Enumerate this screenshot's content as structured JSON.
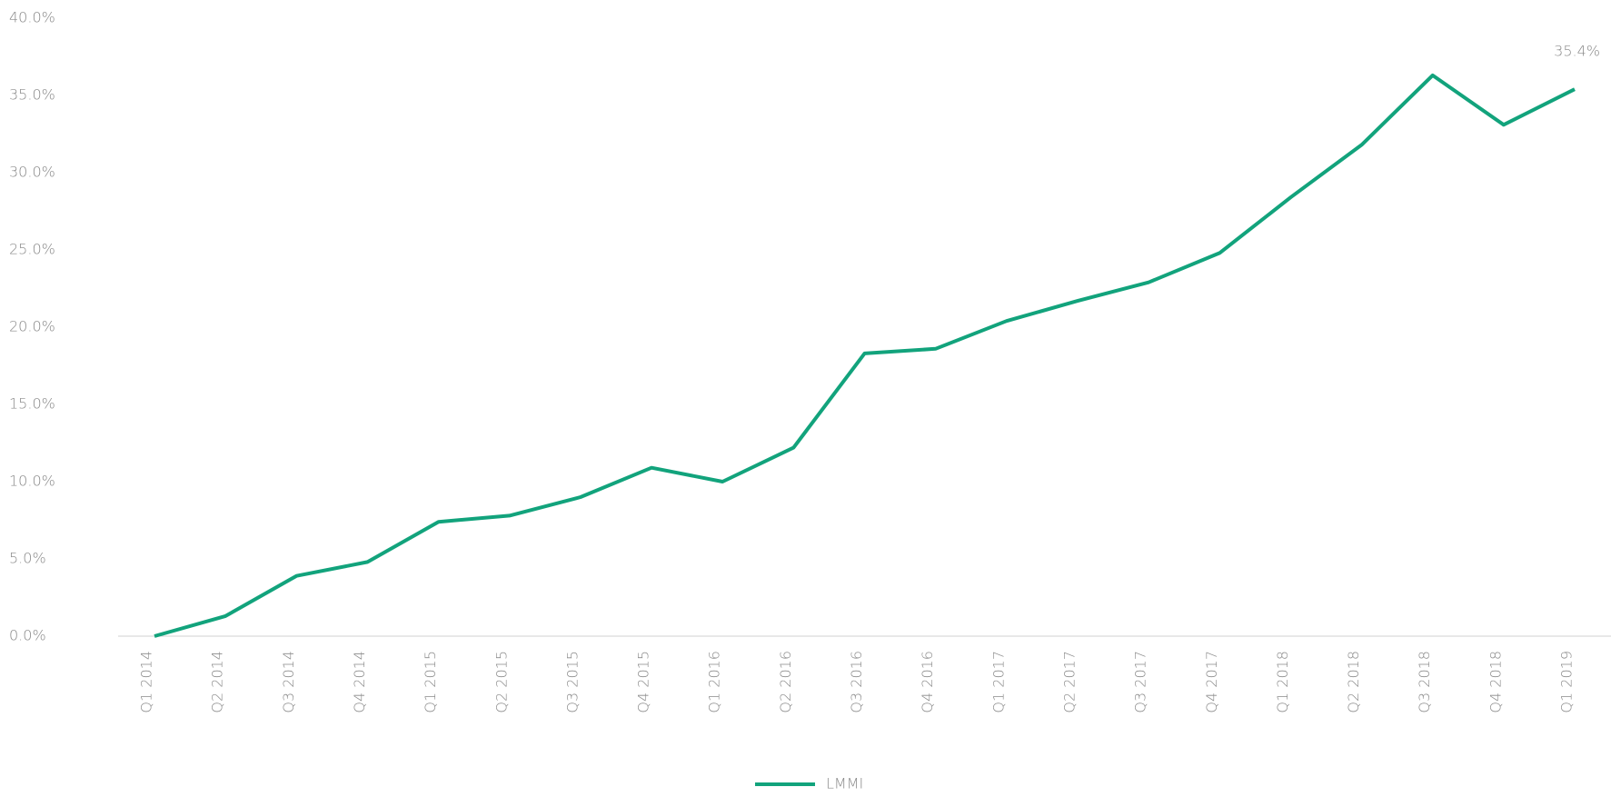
{
  "chart_data": {
    "type": "line",
    "categories": [
      "Q1 2014",
      "Q2 2014",
      "Q3 2014",
      "Q4 2014",
      "Q1 2015",
      "Q2 2015",
      "Q3 2015",
      "Q4 2015",
      "Q1 2016",
      "Q2 2016",
      "Q3 2016",
      "Q4 2016",
      "Q1 2017",
      "Q2 2017",
      "Q3 2017",
      "Q4 2017",
      "Q1 2018",
      "Q2 2018",
      "Q3 2018",
      "Q4 2018",
      "Q1 2019"
    ],
    "series": [
      {
        "name": "LMMI",
        "color": "#12a37c",
        "values": [
          0.0,
          1.3,
          3.9,
          4.8,
          7.4,
          7.8,
          9.0,
          10.9,
          10.0,
          12.2,
          18.3,
          18.6,
          20.4,
          21.7,
          22.9,
          24.8,
          28.4,
          31.8,
          36.3,
          33.1,
          35.4
        ],
        "value_labels": [
          null,
          null,
          null,
          null,
          null,
          null,
          null,
          null,
          null,
          null,
          null,
          null,
          null,
          null,
          null,
          null,
          null,
          null,
          null,
          null,
          "35.4%"
        ]
      }
    ],
    "ylim": [
      0,
      40
    ],
    "yticks": [
      {
        "value": 0,
        "label": "0.0%"
      },
      {
        "value": 5,
        "label": "5.0%"
      },
      {
        "value": 10,
        "label": "10.0%"
      },
      {
        "value": 15,
        "label": "15.0%"
      },
      {
        "value": 20,
        "label": "20.0%"
      },
      {
        "value": 25,
        "label": "25.0%"
      },
      {
        "value": 30,
        "label": "30.0%"
      },
      {
        "value": 35,
        "label": "35.0%"
      },
      {
        "value": 40,
        "label": "40.0%"
      }
    ],
    "grid": false
  }
}
